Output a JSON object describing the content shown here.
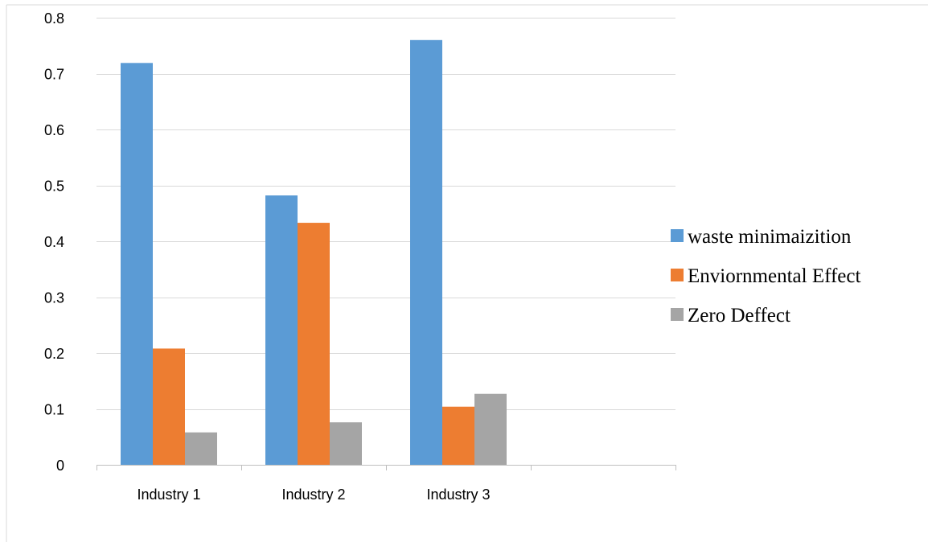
{
  "chart_data": {
    "type": "bar",
    "categories": [
      "Industry 1",
      "Industry 2",
      "Industry 3",
      ""
    ],
    "series": [
      {
        "name": "waste minimaizition",
        "color": "#5B9BD5",
        "values": [
          0.719,
          0.482,
          0.76,
          null
        ]
      },
      {
        "name": "Enviornmental Effect",
        "color": "#ED7D31",
        "values": [
          0.208,
          0.433,
          0.104,
          null
        ]
      },
      {
        "name": "Zero Deffect",
        "color": "#A5A5A5",
        "values": [
          0.058,
          0.076,
          0.127,
          null
        ]
      }
    ],
    "yticks": [
      "0",
      "0.1",
      "0.2",
      "0.3",
      "0.4",
      "0.5",
      "0.6",
      "0.7",
      "0.8"
    ],
    "ylim": [
      0,
      0.8
    ],
    "grid": true,
    "legend_position": "right",
    "gridline_color": "#D9D9D9",
    "axis_color": "#BFBFBF",
    "frame_color": "#D9D9D9"
  }
}
